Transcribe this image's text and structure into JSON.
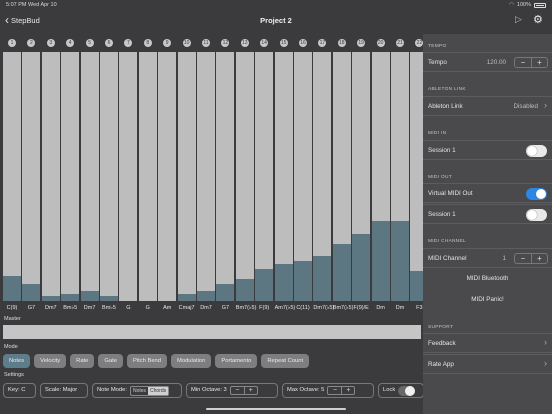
{
  "status": {
    "time": "5:07 PM",
    "date": "Wed Apr 10",
    "battery": "100%"
  },
  "nav": {
    "back_label": "StepBud",
    "title": "Project 2"
  },
  "steps": [
    {
      "n": "1",
      "chord": "C(9)",
      "level": 0.1
    },
    {
      "n": "2",
      "chord": "G7",
      "level": 0.07
    },
    {
      "n": "3",
      "chord": "Dm7",
      "level": 0.02
    },
    {
      "n": "4",
      "chord": "Bm♭5",
      "level": 0.03
    },
    {
      "n": "5",
      "chord": "Dm7",
      "level": 0.04
    },
    {
      "n": "6",
      "chord": "Bm♭5",
      "level": 0.02
    },
    {
      "n": "7",
      "chord": "G",
      "level": 0.0
    },
    {
      "n": "8",
      "chord": "G",
      "level": 0.0
    },
    {
      "n": "9",
      "chord": "Am",
      "level": 0.0
    },
    {
      "n": "10",
      "chord": "Cmaj7",
      "level": 0.03
    },
    {
      "n": "11",
      "chord": "Dm7",
      "level": 0.04
    },
    {
      "n": "12",
      "chord": "G7",
      "level": 0.07
    },
    {
      "n": "13",
      "chord": "Bm7(♭5)",
      "level": 0.09
    },
    {
      "n": "14",
      "chord": "F(9)",
      "level": 0.13
    },
    {
      "n": "15",
      "chord": "Am7(♭5)",
      "level": 0.15
    },
    {
      "n": "16",
      "chord": "C(11)",
      "level": 0.16
    },
    {
      "n": "17",
      "chord": "Dm7(♭5)",
      "level": 0.18
    },
    {
      "n": "18",
      "chord": "Bm7(♭5)",
      "level": 0.23
    },
    {
      "n": "19",
      "chord": "F(9)/E",
      "level": 0.27
    },
    {
      "n": "20",
      "chord": "Dm",
      "level": 0.32
    },
    {
      "n": "21",
      "chord": "Dm",
      "level": 0.32
    },
    {
      "n": "22",
      "chord": "F3",
      "level": 0.12
    }
  ],
  "master": {
    "label": "Master"
  },
  "mode": {
    "label": "Mode",
    "tabs": [
      "Notes",
      "Velocity",
      "Rate",
      "Gate",
      "Pitch Bend",
      "Modulation",
      "Portamento",
      "Repeat Count"
    ]
  },
  "settings": {
    "label": "Settings",
    "key": "Key: C",
    "scale": "Scale: Major",
    "note_mode_label": "Note Mode:",
    "note_mode_options": [
      "Notes",
      "Chords"
    ],
    "min_octave": "Min Octave: 3",
    "max_octave": "Max Octave: 5",
    "lock": "Lock"
  },
  "panel": {
    "tempo_header": "TEMPO",
    "tempo_label": "Tempo",
    "tempo_value": "120.00",
    "link_header": "ABLETON LINK",
    "link_label": "Ableton Link",
    "link_value": "Disabled",
    "midi_in_header": "MIDI IN",
    "midi_in_session": "Session 1",
    "midi_out_header": "MIDI OUT",
    "midi_out_virtual": "Virtual MIDI Out",
    "midi_out_session": "Session 1",
    "channel_header": "MIDI CHANNEL",
    "channel_label": "MIDI Channel",
    "channel_value": "1",
    "bluetooth": "MIDI Bluetooth",
    "panic": "MIDI Panic!",
    "support_header": "SUPPORT",
    "feedback": "Feedback",
    "rate_app": "Rate App"
  },
  "colors": {
    "accent": "#5d7782",
    "toggle_on": "#2d86e3",
    "panel_bg": "#4a4a4c"
  },
  "icons": {
    "play": "play-icon",
    "settings": "gear-icon",
    "back": "chevron-left-icon"
  }
}
